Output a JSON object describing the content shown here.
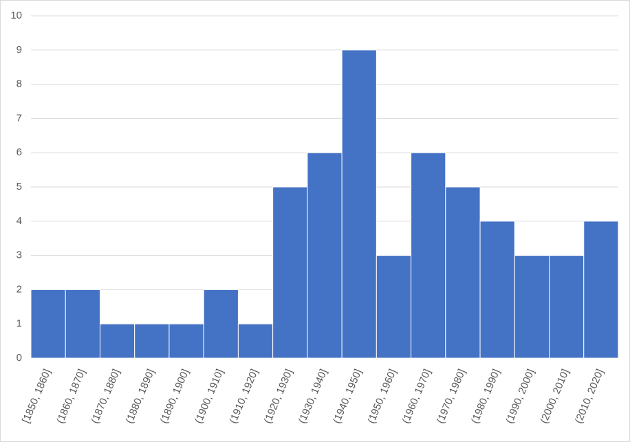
{
  "chart_data": {
    "type": "bar",
    "categories": [
      "[1850, 1860]",
      "(1860, 1870]",
      "(1870, 1880]",
      "(1880, 1890]",
      "(1890, 1900]",
      "(1900, 1910]",
      "(1910, 1920]",
      "(1920, 1930]",
      "(1930, 1940]",
      "(1940, 1950]",
      "(1950, 1960]",
      "(1960, 1970]",
      "(1970, 1980]",
      "(1980, 1990]",
      "(1990, 2000]",
      "(2000, 2010]",
      "(2010, 2020]"
    ],
    "values": [
      2,
      2,
      1,
      1,
      1,
      2,
      1,
      5,
      6,
      9,
      3,
      6,
      5,
      4,
      3,
      3,
      4
    ],
    "color": "#4472c4",
    "ylim": [
      0,
      10
    ],
    "yticks": [
      0,
      1,
      2,
      3,
      4,
      5,
      6,
      7,
      8,
      9,
      10
    ],
    "grid": true
  }
}
